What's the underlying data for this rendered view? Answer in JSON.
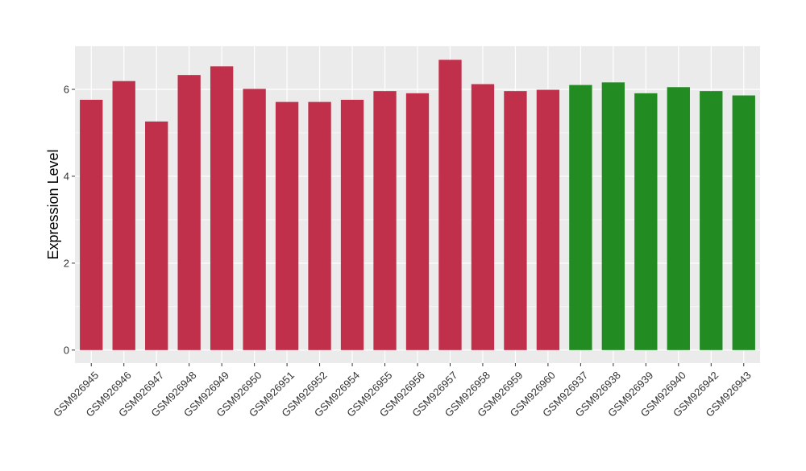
{
  "chart_data": {
    "type": "bar",
    "title": "",
    "xlabel": "",
    "ylabel": "Expression Level",
    "ylim": [
      -0.3,
      7.0
    ],
    "yticks": [
      0,
      2,
      4,
      6
    ],
    "ytick_labels": [
      "0",
      "2",
      "4",
      "6"
    ],
    "grid": true,
    "legend": "none",
    "categories": [
      "GSM926945",
      "GSM926946",
      "GSM926947",
      "GSM926948",
      "GSM926949",
      "GSM926950",
      "GSM926951",
      "GSM926952",
      "GSM926954",
      "GSM926955",
      "GSM926956",
      "GSM926957",
      "GSM926958",
      "GSM926959",
      "GSM926960",
      "GSM926937",
      "GSM926938",
      "GSM926939",
      "GSM926940",
      "GSM926942",
      "GSM926943"
    ],
    "values": [
      5.76,
      6.19,
      5.26,
      6.33,
      6.53,
      6.01,
      5.71,
      5.71,
      5.76,
      5.96,
      5.91,
      6.68,
      6.12,
      5.96,
      5.99,
      6.1,
      6.16,
      5.91,
      6.05,
      5.96,
      5.86
    ],
    "colors": [
      "#C0304A",
      "#C0304A",
      "#C0304A",
      "#C0304A",
      "#C0304A",
      "#C0304A",
      "#C0304A",
      "#C0304A",
      "#C0304A",
      "#C0304A",
      "#C0304A",
      "#C0304A",
      "#C0304A",
      "#C0304A",
      "#C0304A",
      "#228B22",
      "#228B22",
      "#228B22",
      "#228B22",
      "#228B22",
      "#228B22"
    ]
  },
  "style": {
    "panel_background": "#EBEBEB",
    "grid_major": "#FFFFFF",
    "axis_text": "#333333",
    "axis_title": "#000000"
  }
}
